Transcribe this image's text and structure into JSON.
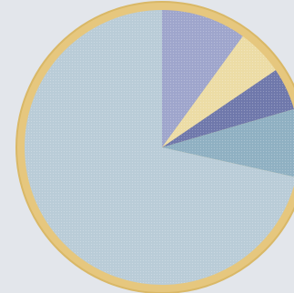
{
  "colors": {
    "background": "#e3e6eb",
    "rim": "#e6c77e",
    "rim_inner": "#d9b867"
  },
  "chart_data": {
    "type": "pie",
    "title": "",
    "start_angle_deg": 0,
    "direction": "clockwise",
    "legend": "none",
    "slices": [
      {
        "value": 10.0,
        "color": "#9ea5cc"
      },
      {
        "value": 5.5,
        "color": "#ecdca5"
      },
      {
        "value": 5.0,
        "color": "#6f78ab"
      },
      {
        "value": 8.0,
        "color": "#8fb0c2"
      },
      {
        "value": 71.5,
        "color": "#b9ccd7"
      }
    ]
  }
}
